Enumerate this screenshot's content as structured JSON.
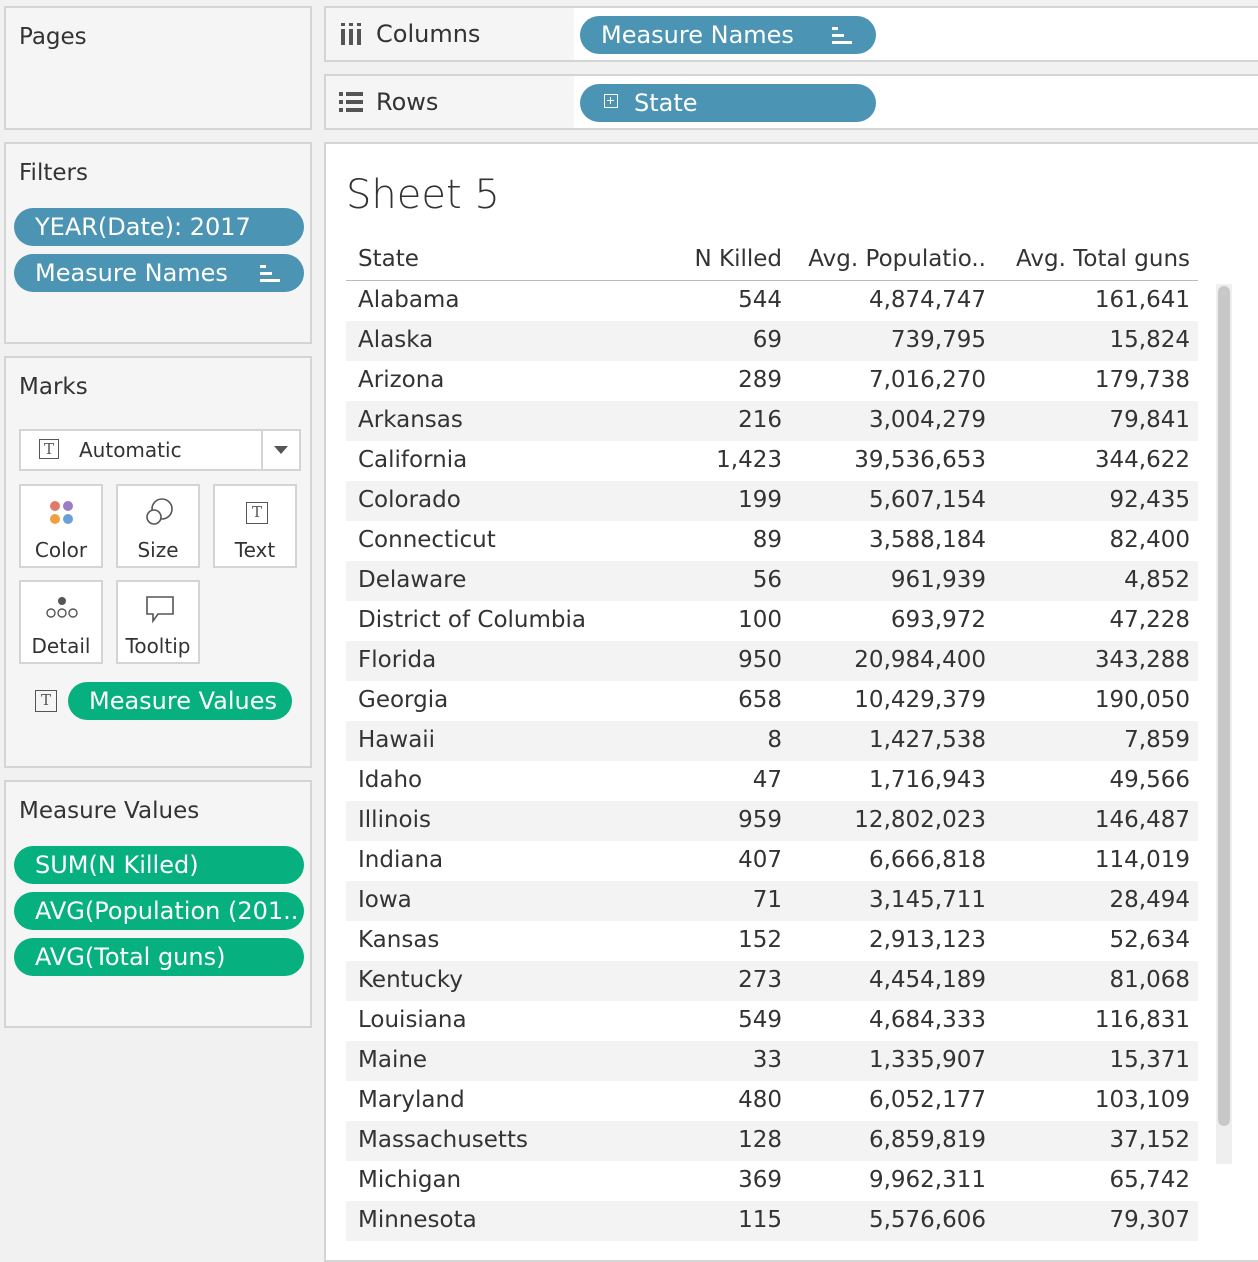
{
  "pages": {
    "title": "Pages"
  },
  "filters": {
    "title": "Filters",
    "items": [
      "YEAR(Date): 2017",
      "Measure Names"
    ]
  },
  "marks": {
    "title": "Marks",
    "type": "Automatic",
    "buttons": {
      "color": "Color",
      "size": "Size",
      "text": "Text",
      "detail": "Detail",
      "tooltip": "Tooltip"
    },
    "field": "Measure Values"
  },
  "measure_values": {
    "title": "Measure Values",
    "items": [
      "SUM(N Killed)",
      "AVG(Population (201..",
      "AVG(Total guns)"
    ]
  },
  "shelves": {
    "columns_label": "Columns",
    "columns_pill": "Measure Names",
    "rows_label": "Rows",
    "rows_pill": "State"
  },
  "sheet": {
    "title": "Sheet 5",
    "headers": [
      "State",
      "N Killed",
      "Avg. Populatio..",
      "Avg. Total guns"
    ],
    "rows": [
      [
        "Alabama",
        "544",
        "4,874,747",
        "161,641"
      ],
      [
        "Alaska",
        "69",
        "739,795",
        "15,824"
      ],
      [
        "Arizona",
        "289",
        "7,016,270",
        "179,738"
      ],
      [
        "Arkansas",
        "216",
        "3,004,279",
        "79,841"
      ],
      [
        "California",
        "1,423",
        "39,536,653",
        "344,622"
      ],
      [
        "Colorado",
        "199",
        "5,607,154",
        "92,435"
      ],
      [
        "Connecticut",
        "89",
        "3,588,184",
        "82,400"
      ],
      [
        "Delaware",
        "56",
        "961,939",
        "4,852"
      ],
      [
        "District of Columbia",
        "100",
        "693,972",
        "47,228"
      ],
      [
        "Florida",
        "950",
        "20,984,400",
        "343,288"
      ],
      [
        "Georgia",
        "658",
        "10,429,379",
        "190,050"
      ],
      [
        "Hawaii",
        "8",
        "1,427,538",
        "7,859"
      ],
      [
        "Idaho",
        "47",
        "1,716,943",
        "49,566"
      ],
      [
        "Illinois",
        "959",
        "12,802,023",
        "146,487"
      ],
      [
        "Indiana",
        "407",
        "6,666,818",
        "114,019"
      ],
      [
        "Iowa",
        "71",
        "3,145,711",
        "28,494"
      ],
      [
        "Kansas",
        "152",
        "2,913,123",
        "52,634"
      ],
      [
        "Kentucky",
        "273",
        "4,454,189",
        "81,068"
      ],
      [
        "Louisiana",
        "549",
        "4,684,333",
        "116,831"
      ],
      [
        "Maine",
        "33",
        "1,335,907",
        "15,371"
      ],
      [
        "Maryland",
        "480",
        "6,052,177",
        "103,109"
      ],
      [
        "Massachusetts",
        "128",
        "6,859,819",
        "37,152"
      ],
      [
        "Michigan",
        "369",
        "9,962,311",
        "65,742"
      ],
      [
        "Minnesota",
        "115",
        "5,576,606",
        "79,307"
      ]
    ]
  },
  "colors": {
    "blue_pill": "#4c94b4",
    "green_pill": "#06b07f"
  }
}
